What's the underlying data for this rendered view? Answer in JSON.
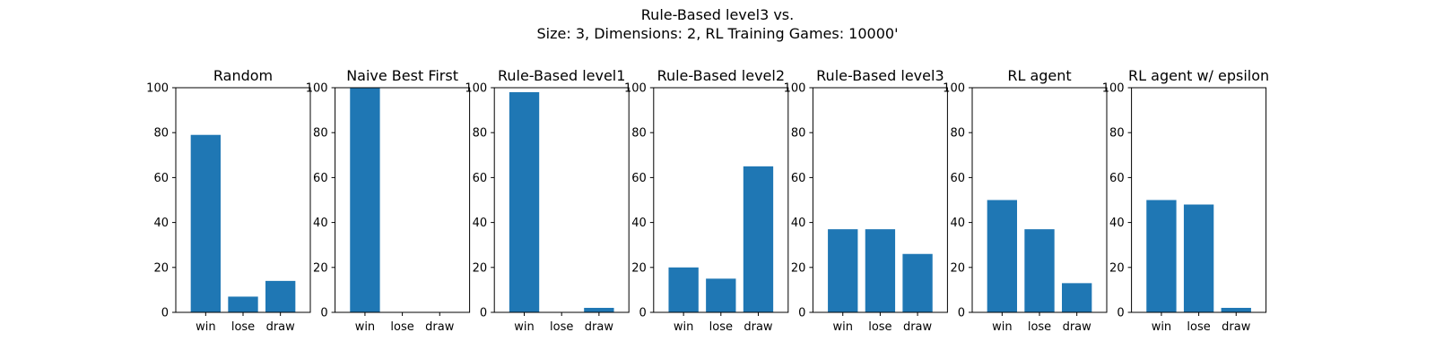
{
  "figure": {
    "title_line1": "Rule-Based level3 vs.",
    "title_line2": "Size: 3, Dimensions: 2, RL Training Games: 10000'"
  },
  "colors": {
    "bar": "#1f77b4",
    "axis": "#000000"
  },
  "chart_data": [
    {
      "type": "bar",
      "title": "Random",
      "categories": [
        "win",
        "lose",
        "draw"
      ],
      "values": [
        79,
        7,
        14
      ],
      "ylim": [
        0,
        100
      ],
      "yticks": [
        0,
        20,
        40,
        60,
        80,
        100
      ],
      "grid": false
    },
    {
      "type": "bar",
      "title": "Naive Best First",
      "categories": [
        "win",
        "lose",
        "draw"
      ],
      "values": [
        100,
        0,
        0
      ],
      "ylim": [
        0,
        100
      ],
      "yticks": [
        0,
        20,
        40,
        60,
        80,
        100
      ],
      "grid": false
    },
    {
      "type": "bar",
      "title": "Rule-Based level1",
      "categories": [
        "win",
        "lose",
        "draw"
      ],
      "values": [
        98,
        0,
        2
      ],
      "ylim": [
        0,
        100
      ],
      "yticks": [
        0,
        20,
        40,
        60,
        80,
        100
      ],
      "grid": false
    },
    {
      "type": "bar",
      "title": "Rule-Based level2",
      "categories": [
        "win",
        "lose",
        "draw"
      ],
      "values": [
        20,
        15,
        65
      ],
      "ylim": [
        0,
        100
      ],
      "yticks": [
        0,
        20,
        40,
        60,
        80,
        100
      ],
      "grid": false
    },
    {
      "type": "bar",
      "title": "Rule-Based level3",
      "categories": [
        "win",
        "lose",
        "draw"
      ],
      "values": [
        37,
        37,
        26
      ],
      "ylim": [
        0,
        100
      ],
      "yticks": [
        0,
        20,
        40,
        60,
        80,
        100
      ],
      "grid": false
    },
    {
      "type": "bar",
      "title": "RL agent",
      "categories": [
        "win",
        "lose",
        "draw"
      ],
      "values": [
        50,
        37,
        13
      ],
      "ylim": [
        0,
        100
      ],
      "yticks": [
        0,
        20,
        40,
        60,
        80,
        100
      ],
      "grid": false
    },
    {
      "type": "bar",
      "title": "RL agent w/ epsilon",
      "categories": [
        "win",
        "lose",
        "draw"
      ],
      "values": [
        50,
        48,
        2
      ],
      "ylim": [
        0,
        100
      ],
      "yticks": [
        0,
        20,
        40,
        60,
        80,
        100
      ],
      "grid": false
    }
  ]
}
